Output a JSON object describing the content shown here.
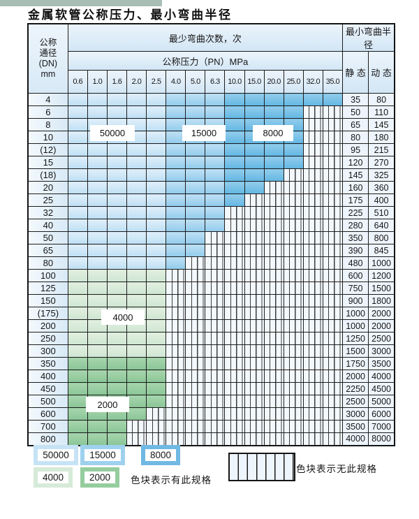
{
  "title": "金属软管公称压力、最小弯曲半径",
  "table": {
    "corner_lines": [
      "公称",
      "通径",
      "(DN)",
      "mm"
    ],
    "bend_cycles_header": "最少弯曲次数，次",
    "pressure_header": "公称压力（PN）MPa",
    "radius_header": "最小弯曲半径",
    "static_header": "静 态",
    "dynamic_header": "动 态",
    "pressures": [
      "0.6",
      "1.0",
      "1.6",
      "2.0",
      "2.5",
      "4.0",
      "5.0",
      "6.3",
      "10.0",
      "15.0",
      "20.0",
      "25.0",
      "32.0",
      "35.0"
    ],
    "blue_bands": [
      {
        "from": "0.6",
        "to": "2.5",
        "cycles": "50000"
      },
      {
        "from": "4.0",
        "to": "6.3",
        "cycles": "15000"
      },
      {
        "from": "10.0",
        "to": "35.0",
        "cycles": "8000"
      }
    ],
    "rows": [
      {
        "dn": "4",
        "colored_through": "35.0",
        "scheme": "blue",
        "static": "35",
        "dynamic": "80"
      },
      {
        "dn": "6",
        "colored_through": "25.0",
        "scheme": "blue",
        "static": "50",
        "dynamic": "110"
      },
      {
        "dn": "8",
        "colored_through": "25.0",
        "scheme": "blue",
        "static": "65",
        "dynamic": "145"
      },
      {
        "dn": "10",
        "colored_through": "25.0",
        "scheme": "blue",
        "static": "80",
        "dynamic": "180"
      },
      {
        "dn": "(12)",
        "colored_through": "25.0",
        "scheme": "blue",
        "static": "95",
        "dynamic": "215"
      },
      {
        "dn": "15",
        "colored_through": "25.0",
        "scheme": "blue",
        "static": "120",
        "dynamic": "270"
      },
      {
        "dn": "(18)",
        "colored_through": "20.0",
        "scheme": "blue",
        "static": "145",
        "dynamic": "325"
      },
      {
        "dn": "20",
        "colored_through": "15.0",
        "scheme": "blue",
        "static": "160",
        "dynamic": "360"
      },
      {
        "dn": "25",
        "colored_through": "10.0",
        "scheme": "blue",
        "static": "175",
        "dynamic": "400"
      },
      {
        "dn": "32",
        "colored_through": "6.3",
        "scheme": "blue",
        "static": "225",
        "dynamic": "510"
      },
      {
        "dn": "40",
        "colored_through": "6.3",
        "scheme": "blue",
        "static": "280",
        "dynamic": "640"
      },
      {
        "dn": "50",
        "colored_through": "5.0",
        "scheme": "blue",
        "static": "350",
        "dynamic": "800"
      },
      {
        "dn": "65",
        "colored_through": "5.0",
        "scheme": "blue",
        "static": "390",
        "dynamic": "845"
      },
      {
        "dn": "80",
        "colored_through": "4.0",
        "scheme": "blue",
        "static": "480",
        "dynamic": "1000"
      },
      {
        "dn": "100",
        "colored_through": "2.5",
        "scheme": "green-light",
        "static": "600",
        "dynamic": "1200"
      },
      {
        "dn": "125",
        "colored_through": "2.5",
        "scheme": "green-light",
        "static": "750",
        "dynamic": "1500"
      },
      {
        "dn": "150",
        "colored_through": "2.5",
        "scheme": "green-light",
        "static": "900",
        "dynamic": "1800"
      },
      {
        "dn": "(175)",
        "colored_through": "2.5",
        "scheme": "green-light",
        "static": "1000",
        "dynamic": "2000"
      },
      {
        "dn": "200",
        "colored_through": "2.5",
        "scheme": "green-light",
        "static": "1000",
        "dynamic": "2000"
      },
      {
        "dn": "250",
        "colored_through": "2.5",
        "scheme": "green-light",
        "static": "1250",
        "dynamic": "2500"
      },
      {
        "dn": "300",
        "colored_through": "2.5",
        "scheme": "green-light",
        "static": "1500",
        "dynamic": "3000"
      },
      {
        "dn": "350",
        "colored_through": "2.5",
        "scheme": "green-dark",
        "static": "1750",
        "dynamic": "3500"
      },
      {
        "dn": "400",
        "colored_through": "2.5",
        "scheme": "green-dark",
        "static": "2000",
        "dynamic": "4000"
      },
      {
        "dn": "450",
        "colored_through": "2.5",
        "scheme": "green-dark",
        "static": "2250",
        "dynamic": "4500"
      },
      {
        "dn": "500",
        "colored_through": "2.5",
        "scheme": "green-dark",
        "static": "2500",
        "dynamic": "5000"
      },
      {
        "dn": "600",
        "colored_through": "2.0",
        "scheme": "green-dark",
        "static": "3000",
        "dynamic": "6000"
      },
      {
        "dn": "700",
        "colored_through": "1.6",
        "scheme": "green-dark",
        "static": "3500",
        "dynamic": "7000"
      },
      {
        "dn": "800",
        "colored_through": "1.6",
        "scheme": "green-dark",
        "static": "4000",
        "dynamic": "8000"
      }
    ]
  },
  "cycle_values": {
    "blue_light": "50000",
    "blue_mid": "15000",
    "blue_dark": "8000",
    "green_light": "4000",
    "green_dark": "2000"
  },
  "colors": {
    "blue_light": "#bedff4",
    "blue_mid": "#92cbec",
    "blue_dark": "#63b7e4",
    "green_light": "#cfe6d2",
    "green_dark": "#8ac596"
  },
  "legend": {
    "has_spec_note": "色块表示有此规格",
    "no_spec_note": "色块表示无此规格"
  }
}
